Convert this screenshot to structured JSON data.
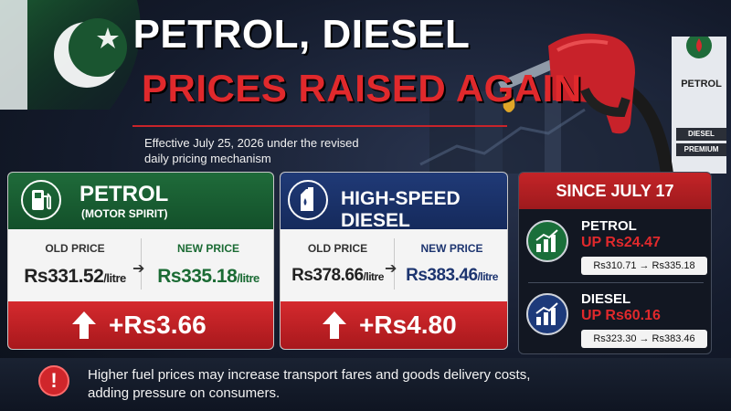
{
  "header": {
    "title_line1": "PETROL, DIESEL",
    "title_line2": "PRICES RAISED AGAIN",
    "effective_line1": "Effective July 25, 2026 under the revised",
    "effective_line2": "daily pricing mechanism"
  },
  "station_sign": {
    "petrol": "PETROL",
    "diesel": "DIESEL",
    "premium": "PREMIUM"
  },
  "petrol_card": {
    "title": "PETROL",
    "subtitle": "(MOTOR SPIRIT)",
    "old_label": "OLD PRICE",
    "new_label": "NEW PRICE",
    "old_value": "Rs331.52",
    "new_value": "Rs335.18",
    "unit": "/litre",
    "delta": "+Rs3.66",
    "icon": "fuel-pump-icon"
  },
  "diesel_card": {
    "title": "HIGH-SPEED DIESEL",
    "old_label": "OLD PRICE",
    "new_label": "NEW PRICE",
    "old_value": "Rs378.66",
    "new_value": "Rs383.46",
    "unit": "/litre",
    "delta": "+Rs4.80",
    "icon": "fuel-can-icon"
  },
  "since": {
    "title": "SINCE JULY 17",
    "items": [
      {
        "name": "PETROL",
        "change": "UP Rs24.47",
        "range": "Rs310.71 → Rs335.18",
        "icon": "trend-up-icon"
      },
      {
        "name": "DIESEL",
        "change": "UP Rs60.16",
        "range": "Rs323.30 → Rs383.46",
        "icon": "trend-up-icon"
      }
    ]
  },
  "footer": {
    "line1": "Higher fuel prices may increase transport fares and goods delivery costs,",
    "line2": "adding pressure on consumers.",
    "icon": "exclamation-icon"
  },
  "colors": {
    "green": "#1f6b3a",
    "blue": "#203a77",
    "red": "#d52a2e",
    "dark_green_text": "#1b6b34",
    "dark_blue_text": "#1d3570"
  }
}
